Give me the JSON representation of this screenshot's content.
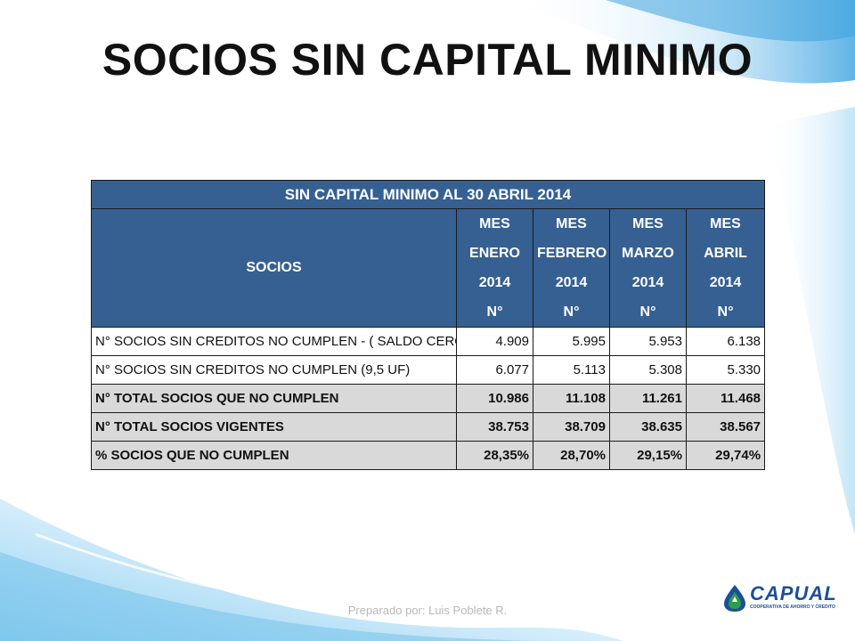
{
  "slide": {
    "title": "SOCIOS SIN CAPITAL MINIMO",
    "footer": "Preparado por: Luis Poblete R."
  },
  "table": {
    "title": "SIN CAPITAL MINIMO AL 30 ABRIL 2014",
    "row_header": "SOCIOS",
    "columns": [
      {
        "line1": "MES",
        "line2": "ENERO",
        "line3": "2014",
        "line4": "N°"
      },
      {
        "line1": "MES",
        "line2": "FEBRERO",
        "line3": "2014",
        "line4": "N°"
      },
      {
        "line1": "MES",
        "line2": "MARZO",
        "line3": "2014",
        "line4": "N°"
      },
      {
        "line1": "MES",
        "line2": "ABRIL",
        "line3": "2014",
        "line4": "N°"
      }
    ],
    "rows": [
      {
        "label": "N° SOCIOS SIN CREDITOS NO CUMPLEN - ( SALDO CERO)",
        "values": [
          "4.909",
          "5.995",
          "5.953",
          "6.138"
        ]
      },
      {
        "label": "N° SOCIOS SIN CREDITOS NO CUMPLEN (9,5 UF)",
        "values": [
          "6.077",
          "5.113",
          "5.308",
          "5.330"
        ]
      },
      {
        "label": "N° TOTAL SOCIOS QUE NO CUMPLEN",
        "values": [
          "10.986",
          "11.108",
          "11.261",
          "11.468"
        ]
      },
      {
        "label": "N° TOTAL SOCIOS VIGENTES",
        "values": [
          "38.753",
          "38.709",
          "38.635",
          "38.567"
        ]
      },
      {
        "label": "% SOCIOS QUE NO CUMPLEN",
        "values": [
          "28,35%",
          "28,70%",
          "29,15%",
          "29,74%"
        ]
      }
    ]
  },
  "logo": {
    "name": "CAPUAL",
    "tagline": "COOPERATIVA DE AHORRO Y CREDITO"
  },
  "colors": {
    "header_blue": "#366092",
    "bold_row_gray": "#d9d9d9",
    "wave_blue": "#7cc4ec",
    "logo_blue": "#1b4f9c"
  }
}
